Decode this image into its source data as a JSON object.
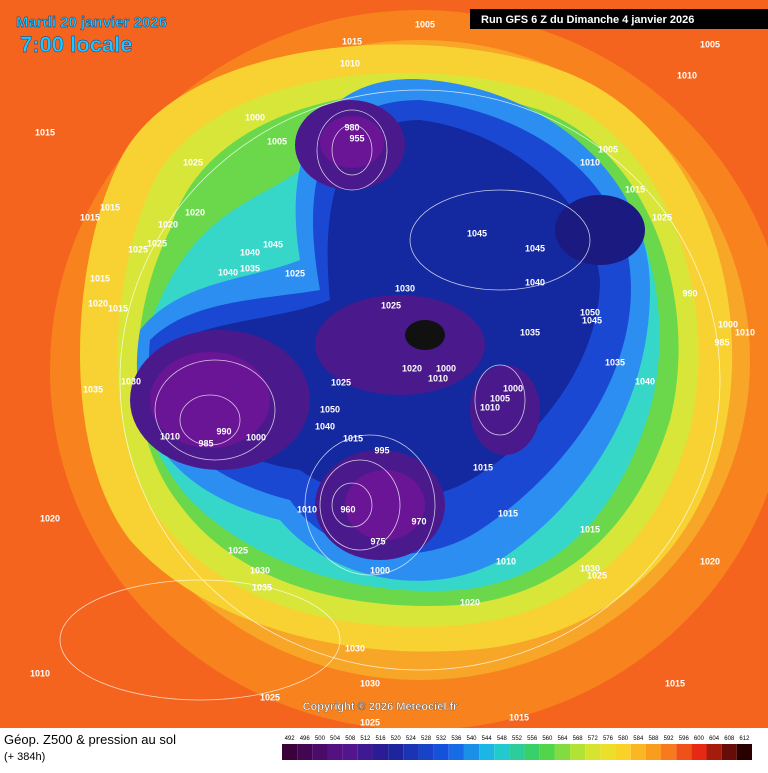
{
  "header": {
    "date": "Mardi 20 janvier 2026",
    "time": "7:00 locale",
    "run": "Run GFS 6 Z du Dimanche 4 janvier 2026"
  },
  "copyright": "Copyright © 2026 Meteociel.fr",
  "footer": {
    "title": "Géop. Z500 & pression au sol",
    "lead": "(+ 384h)"
  },
  "scale": {
    "values": [
      492,
      496,
      500,
      504,
      508,
      512,
      516,
      520,
      524,
      528,
      532,
      536,
      540,
      544,
      548,
      552,
      556,
      560,
      564,
      568,
      572,
      576,
      580,
      584,
      588,
      592,
      596,
      600,
      604,
      608,
      612
    ]
  },
  "isobars": [
    1005,
    1015,
    1005,
    1010,
    1010,
    1015,
    1000,
    980,
    955,
    1005,
    1025,
    1010,
    1005,
    1015,
    1025,
    1015,
    1015,
    1020,
    1020,
    1045,
    1045,
    1025,
    1025,
    1040,
    1045,
    1035,
    1040,
    1025,
    1015,
    1040,
    990,
    1030,
    1020,
    1015,
    1025,
    1050,
    1045,
    1000,
    1010,
    985,
    1035,
    1035,
    1020,
    1000,
    1010,
    1040,
    1030,
    1025,
    1000,
    1005,
    1035,
    1010,
    1050,
    1040,
    990,
    1000,
    1010,
    985,
    1015,
    995,
    1015,
    1020,
    1010,
    960,
    970,
    1015,
    1015,
    975,
    1025,
    1010,
    1030,
    1025,
    1020,
    1000,
    1030,
    1035,
    1020,
    1030,
    1010,
    1030,
    1025,
    1015,
    1015,
    1025
  ]
}
